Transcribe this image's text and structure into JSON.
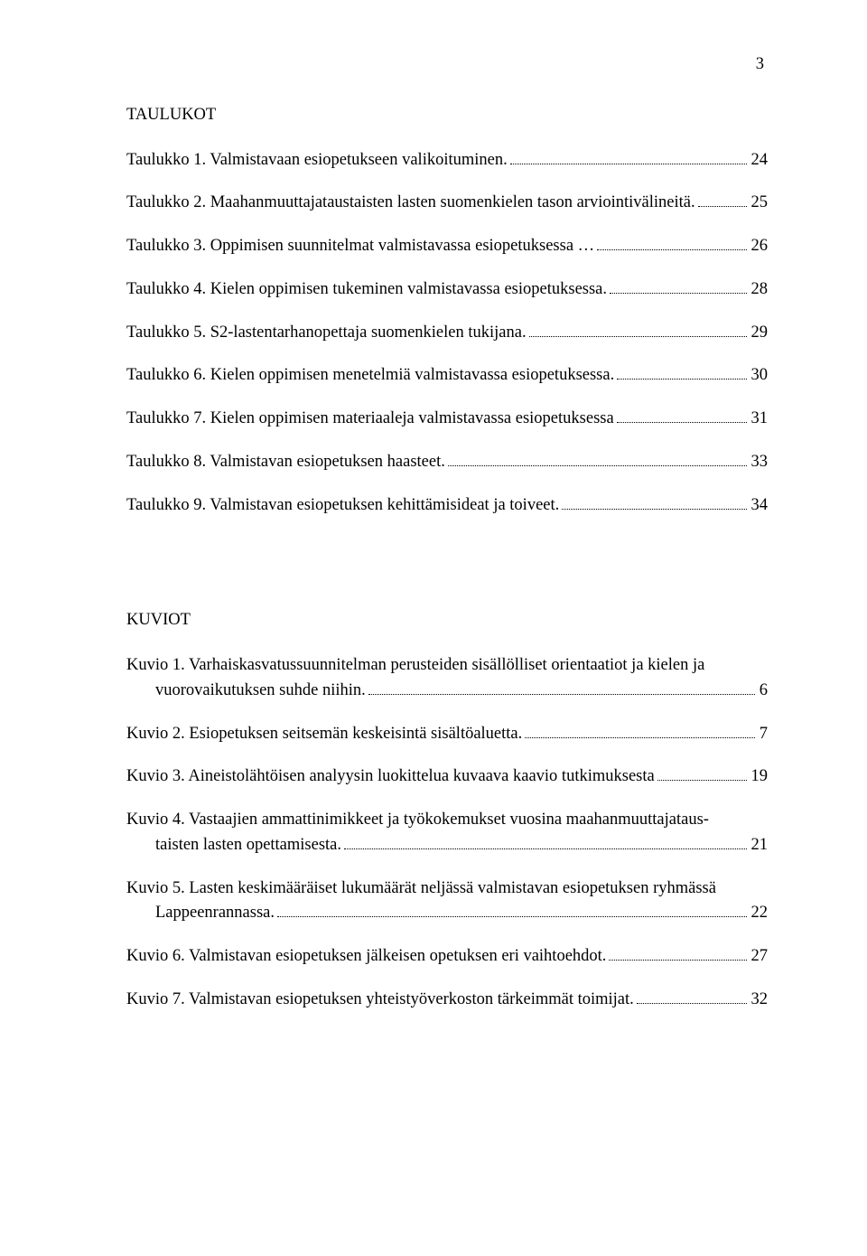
{
  "pageNumber": "3",
  "sections": {
    "taulukot": {
      "heading": "TAULUKOT",
      "entries": [
        {
          "label": "Taulukko 1. Valmistavaan esiopetukseen valikoituminen.",
          "page": "24"
        },
        {
          "label": "Taulukko 2. Maahanmuuttajataustaisten lasten suomenkielen tason arviointivälineitä.",
          "page": "25"
        },
        {
          "label": "Taulukko 3. Oppimisen suunnitelmat valmistavassa esiopetuksessa …",
          "page": "26"
        },
        {
          "label": "Taulukko 4. Kielen oppimisen tukeminen valmistavassa esiopetuksessa.",
          "page": "28"
        },
        {
          "label": "Taulukko 5. S2-lastentarhanopettaja suomenkielen tukijana.",
          "page": "29"
        },
        {
          "label": "Taulukko 6. Kielen oppimisen menetelmiä valmistavassa esiopetuksessa.",
          "page": "30"
        },
        {
          "label": "Taulukko 7. Kielen oppimisen materiaaleja valmistavassa esiopetuksessa",
          "page": "31"
        },
        {
          "label": "Taulukko 8. Valmistavan esiopetuksen haasteet.",
          "page": "33"
        },
        {
          "label": "Taulukko 9. Valmistavan esiopetuksen kehittämisideat ja toiveet.",
          "page": "34"
        }
      ]
    },
    "kuviot": {
      "heading": "KUVIOT",
      "entries": [
        {
          "line1": "Kuvio 1. Varhaiskasvatussuunnitelman perusteiden sisällölliset orientaatiot ja kielen ja",
          "line2": "vuorovaikutuksen suhde niihin.",
          "page": "6"
        },
        {
          "label": "Kuvio  2. Esiopetuksen seitsemän keskeisintä sisältöaluetta.",
          "page": "7"
        },
        {
          "label": "Kuvio  3. Aineistolähtöisen analyysin luokittelua kuvaava kaavio tutkimuksesta",
          "page": "19"
        },
        {
          "line1": "Kuvio 4. Vastaajien ammattinimikkeet ja työkokemukset vuosina maahanmuuttajataus-",
          "line2": "taisten lasten opettamisesta.",
          "page": "21"
        },
        {
          "line1": "Kuvio 5. Lasten keskimääräiset lukumäärät neljässä valmistavan esiopetuksen ryhmässä",
          "line2": "Lappeenrannassa.",
          "page": "22"
        },
        {
          "label": "Kuvio  6. Valmistavan esiopetuksen jälkeisen opetuksen eri vaihtoehdot.",
          "page": "27"
        },
        {
          "label": "Kuvio  7. Valmistavan esiopetuksen yhteistyöverkoston tärkeimmät toimijat.",
          "page": "32"
        }
      ]
    }
  }
}
